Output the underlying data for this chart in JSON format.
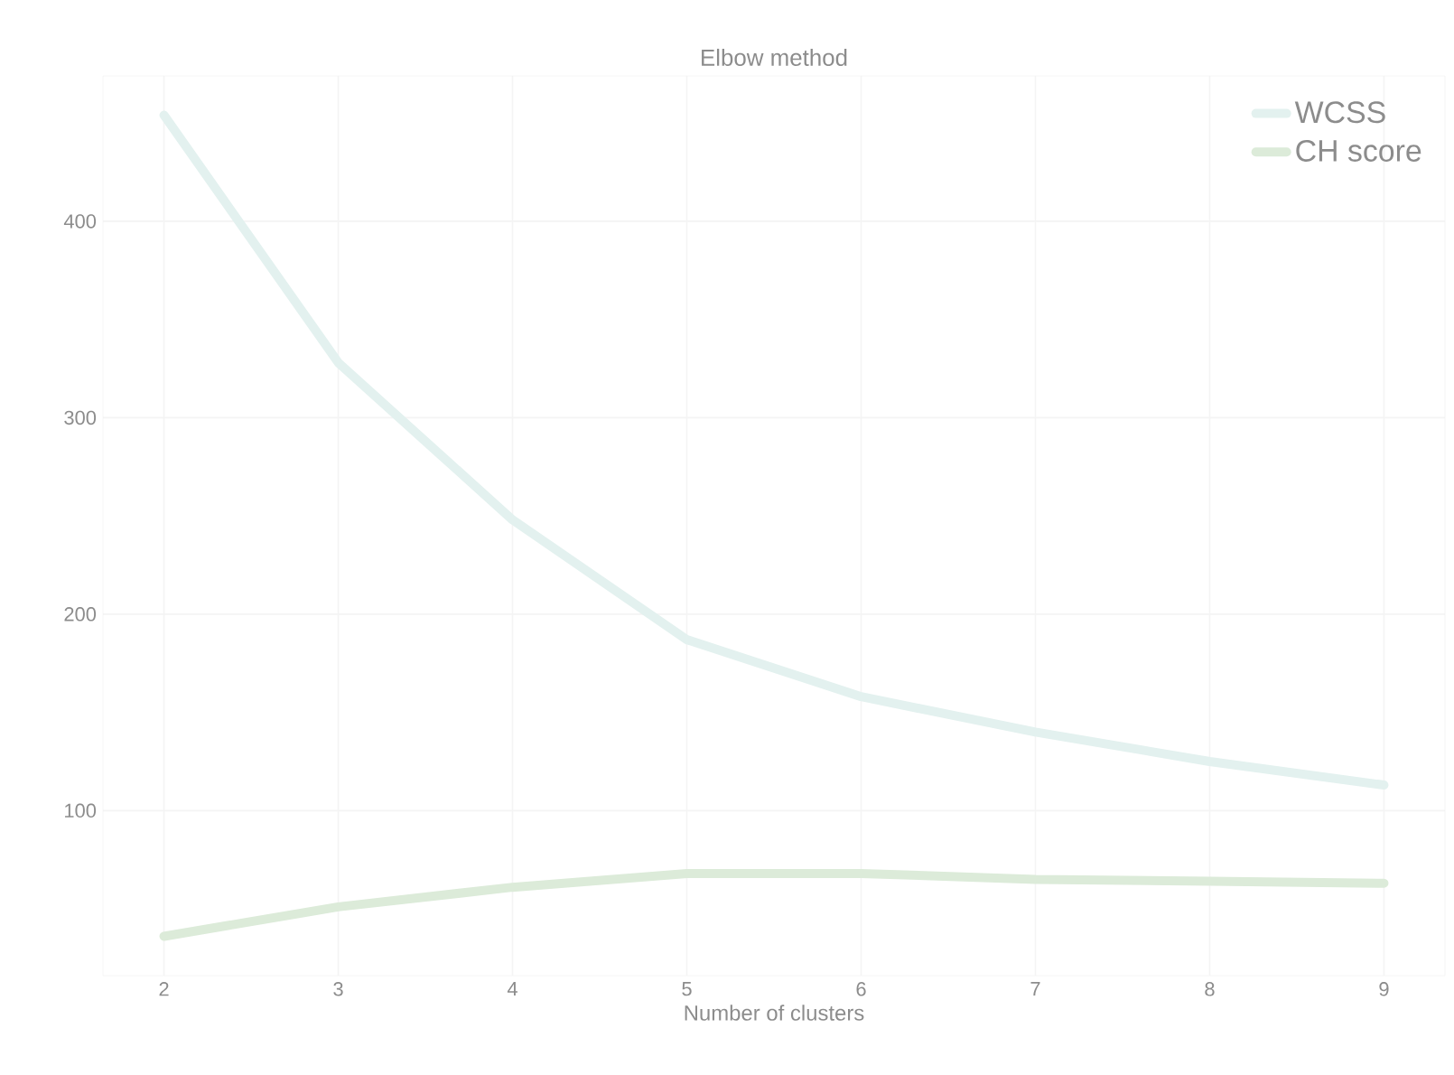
{
  "chart_data": {
    "type": "line",
    "title": "Elbow method",
    "xlabel": "Number of clusters",
    "x": [
      2,
      3,
      4,
      5,
      6,
      7,
      8,
      9
    ],
    "series": [
      {
        "name": "WCSS",
        "color": "#e3f1ef",
        "values": [
          454,
          328,
          248,
          187,
          158,
          140,
          125,
          113
        ]
      },
      {
        "name": "CH score",
        "color": "#dcebd9",
        "values": [
          36,
          51,
          61,
          68,
          68,
          65,
          64,
          63
        ]
      }
    ],
    "xlim": [
      1.65,
      9.35
    ],
    "ylim": [
      16,
      474
    ],
    "xticks": [
      2,
      3,
      4,
      5,
      6,
      7,
      8,
      9
    ],
    "yticks": [
      100,
      200,
      300,
      400
    ],
    "grid": true,
    "legend": "top right",
    "marker": "none",
    "line_style": "solid"
  }
}
